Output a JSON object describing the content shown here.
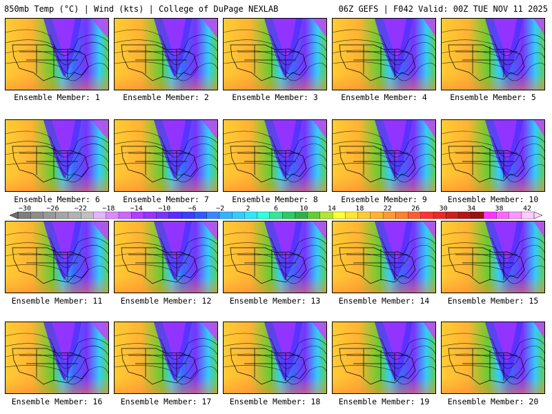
{
  "header": {
    "left": "850mb Temp (°C) | Wind (kts) | College of DuPage NEXLAB",
    "right": "06Z GEFS | F042 Valid: 00Z TUE NOV 11 2025"
  },
  "members": [
    {
      "caption": "Ensemble Member: 1"
    },
    {
      "caption": "Ensemble Member: 2"
    },
    {
      "caption": "Ensemble Member: 3"
    },
    {
      "caption": "Ensemble Member: 4"
    },
    {
      "caption": "Ensemble Member: 5"
    },
    {
      "caption": "Ensemble Member: 6"
    },
    {
      "caption": "Ensemble Member: 7"
    },
    {
      "caption": "Ensemble Member: 8"
    },
    {
      "caption": "Ensemble Member: 9"
    },
    {
      "caption": "Ensemble Member: 10"
    },
    {
      "caption": "Ensemble Member: 11"
    },
    {
      "caption": "Ensemble Member: 12"
    },
    {
      "caption": "Ensemble Member: 13"
    },
    {
      "caption": "Ensemble Member: 14"
    },
    {
      "caption": "Ensemble Member: 15"
    },
    {
      "caption": "Ensemble Member: 16"
    },
    {
      "caption": "Ensemble Member: 17"
    },
    {
      "caption": "Ensemble Member: 18"
    },
    {
      "caption": "Ensemble Member: 19"
    },
    {
      "caption": "Ensemble Member: 20"
    }
  ],
  "colorbar": {
    "tick_labels": [
      "−30",
      "−26",
      "−22",
      "−18",
      "−14",
      "−10",
      "−6",
      "−2",
      "2",
      "6",
      "10",
      "14",
      "18",
      "22",
      "26",
      "30",
      "34",
      "38",
      "42"
    ],
    "colors": [
      "#7f7f7f",
      "#8c8c8c",
      "#999999",
      "#a6a6a6",
      "#b3b3b3",
      "#c0c0c0",
      "#e6b3ff",
      "#d98cff",
      "#cc66ff",
      "#b33cff",
      "#9933ff",
      "#7a33ff",
      "#5a2dff",
      "#3c3cff",
      "#2b5cff",
      "#3a86ff",
      "#33b3ff",
      "#33ccff",
      "#33e6ff",
      "#33ffd9",
      "#33e699",
      "#29cc66",
      "#2bb34a",
      "#66cc33",
      "#b3e633",
      "#ffff33",
      "#ffe633",
      "#ffcc33",
      "#ffb333",
      "#ff9933",
      "#ff7f33",
      "#ff5c33",
      "#ff3333",
      "#e62a2a",
      "#cc1f1f",
      "#b31717",
      "#991111",
      "#ff33ff",
      "#ff66ff",
      "#ff99ff",
      "#ffccff"
    ]
  }
}
